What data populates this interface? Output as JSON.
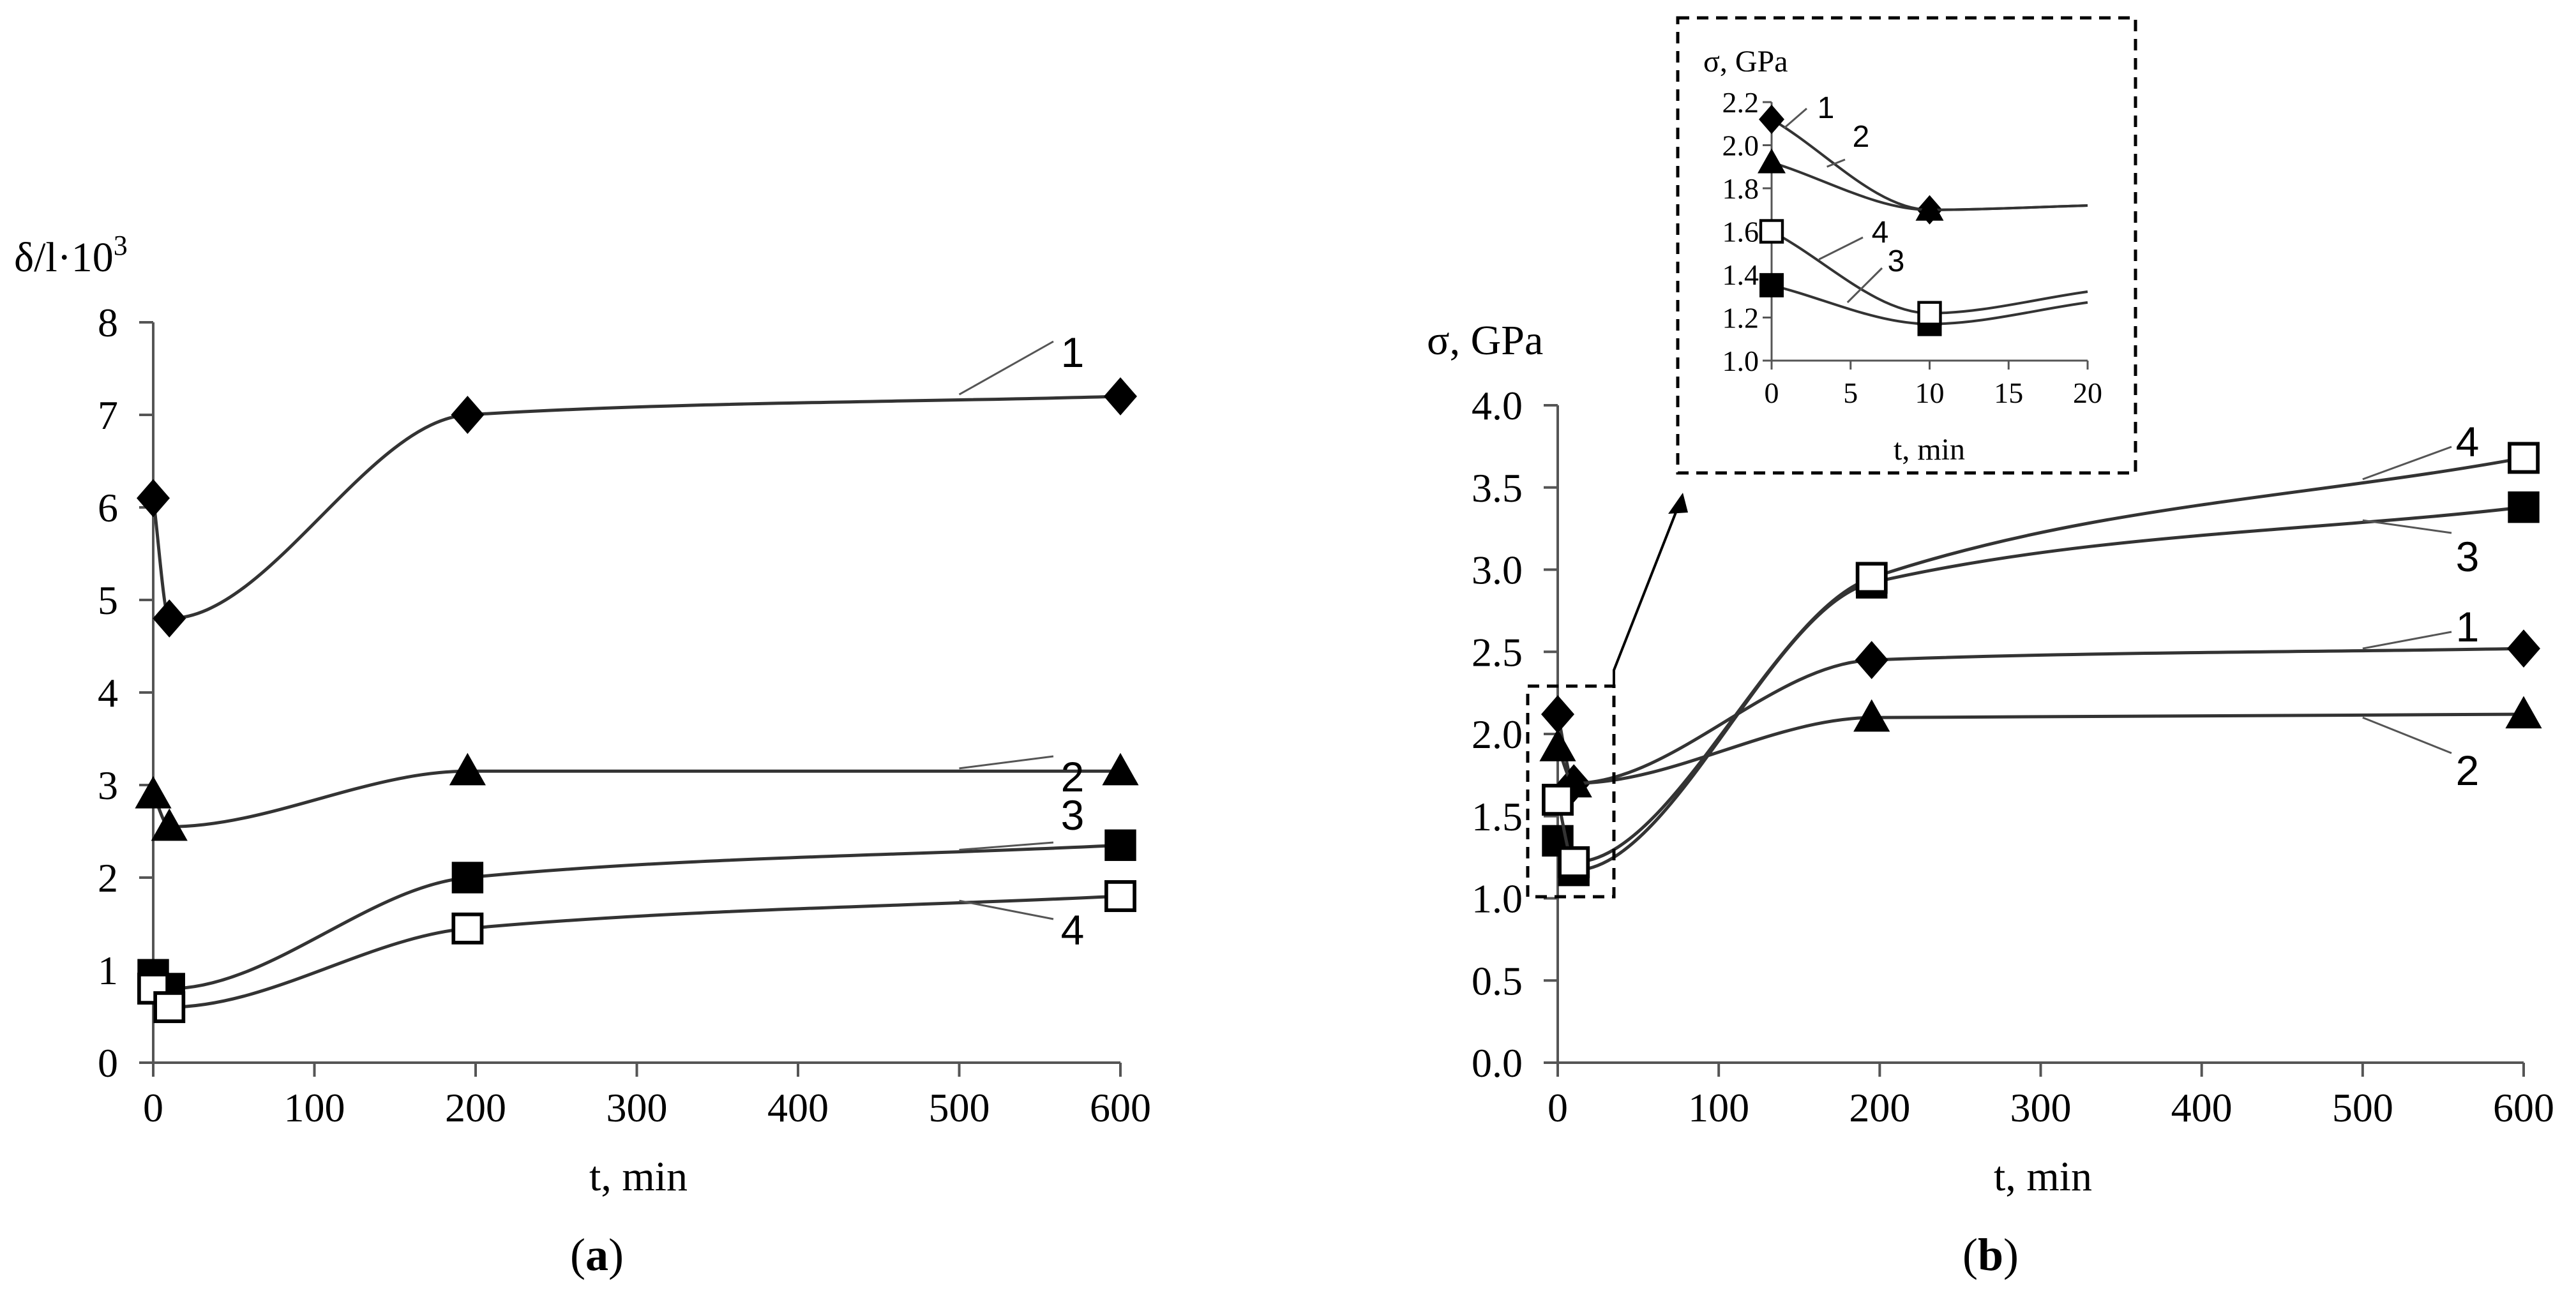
{
  "chart_data": [
    {
      "id": "a",
      "type": "line",
      "panel_label": "a",
      "ylabel": "δ/l·10",
      "ylabel_sup": "3",
      "xlabel": "t, min",
      "xlim": [
        0,
        600
      ],
      "ylim": [
        0,
        8
      ],
      "xticks": [
        0,
        100,
        200,
        300,
        400,
        500,
        600
      ],
      "yticks": [
        0,
        1,
        2,
        3,
        4,
        5,
        6,
        7,
        8
      ],
      "ytick_labels": [
        "0",
        "1",
        "2",
        "3",
        "4",
        "5",
        "6",
        "7",
        "8"
      ],
      "series": [
        {
          "name": "1",
          "marker": "diamond-filled",
          "x": [
            0,
            10,
            195,
            600
          ],
          "y": [
            6.1,
            4.8,
            7.0,
            7.2
          ]
        },
        {
          "name": "2",
          "marker": "triangle-filled",
          "x": [
            0,
            10,
            195,
            600
          ],
          "y": [
            2.9,
            2.55,
            3.15,
            3.15
          ]
        },
        {
          "name": "3",
          "marker": "square-filled",
          "x": [
            0,
            10,
            195,
            600
          ],
          "y": [
            0.95,
            0.8,
            2.0,
            2.35
          ]
        },
        {
          "name": "4",
          "marker": "square-open",
          "x": [
            0,
            10,
            195,
            600
          ],
          "y": [
            0.8,
            0.6,
            1.45,
            1.8
          ]
        }
      ]
    },
    {
      "id": "b",
      "type": "line",
      "panel_label": "b",
      "ylabel": "σ,  GPa",
      "xlabel": "t,  min",
      "xlim": [
        0,
        600
      ],
      "ylim": [
        0,
        4
      ],
      "xticks": [
        0,
        100,
        200,
        300,
        400,
        500,
        600
      ],
      "yticks": [
        0,
        0.5,
        1,
        1.5,
        2,
        2.5,
        3,
        3.5,
        4
      ],
      "ytick_labels": [
        "0.0",
        "0.5",
        "1.0",
        "1.5",
        "2.0",
        "2.5",
        "3.0",
        "3.5",
        "4.0"
      ],
      "series": [
        {
          "name": "1",
          "marker": "diamond-filled",
          "x": [
            0,
            10,
            195,
            600
          ],
          "y": [
            2.12,
            1.7,
            2.45,
            2.52
          ]
        },
        {
          "name": "2",
          "marker": "triangle-filled",
          "x": [
            0,
            10,
            195,
            600
          ],
          "y": [
            1.92,
            1.7,
            2.1,
            2.12
          ]
        },
        {
          "name": "3",
          "marker": "square-filled",
          "x": [
            0,
            10,
            195,
            600
          ],
          "y": [
            1.35,
            1.17,
            2.92,
            3.38
          ]
        },
        {
          "name": "4",
          "marker": "square-open",
          "x": [
            0,
            10,
            195,
            600
          ],
          "y": [
            1.6,
            1.22,
            2.95,
            3.68
          ]
        }
      ],
      "inset": {
        "ylabel": "σ, GPa",
        "xlabel": "t, min",
        "xlim": [
          0,
          20
        ],
        "ylim": [
          1.0,
          2.2
        ],
        "xticks": [
          0,
          5,
          10,
          15,
          20
        ],
        "yticks": [
          1.0,
          1.2,
          1.4,
          1.6,
          1.8,
          2.0,
          2.2
        ],
        "ytick_labels": [
          "1.0",
          "1.2",
          "1.4",
          "1.6",
          "1.8",
          "2.0",
          "2.2"
        ],
        "series": [
          {
            "name": "1",
            "marker": "diamond-filled",
            "x": [
              0,
              10
            ],
            "y": [
              2.12,
              1.7
            ],
            "tail": [
              20,
              1.72
            ]
          },
          {
            "name": "2",
            "marker": "triangle-filled",
            "x": [
              0,
              10
            ],
            "y": [
              1.92,
              1.7
            ],
            "tail": [
              20,
              1.72
            ]
          },
          {
            "name": "3",
            "marker": "square-filled",
            "x": [
              0,
              10
            ],
            "y": [
              1.35,
              1.17
            ],
            "tail": [
              20,
              1.27
            ]
          },
          {
            "name": "4",
            "marker": "square-open",
            "x": [
              0,
              10
            ],
            "y": [
              1.6,
              1.22
            ],
            "tail": [
              20,
              1.32
            ]
          }
        ]
      }
    }
  ]
}
